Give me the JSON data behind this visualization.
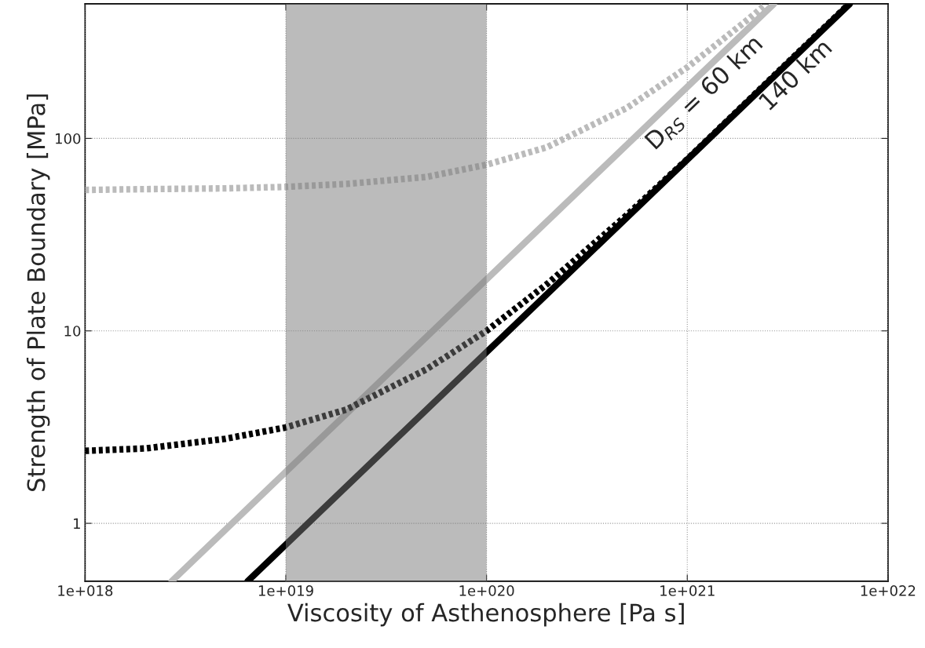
{
  "chart_data": {
    "type": "line",
    "xlabel": "Viscosity of Asthenosphere [Pa s]",
    "ylabel": "Strength of Plate Boundary [MPa]",
    "log": "xy",
    "grid": true,
    "xlim": [
      1e+18,
      1e+22
    ],
    "ylim": [
      0.5,
      500
    ],
    "xticks": [
      {
        "value": 1e+18,
        "label": "1e+018"
      },
      {
        "value": 1e+19,
        "label": "1e+019"
      },
      {
        "value": 1e+20,
        "label": "1e+020"
      },
      {
        "value": 1e+21,
        "label": "1e+021"
      },
      {
        "value": 1e+22,
        "label": "1e+022"
      }
    ],
    "yticks": [
      1,
      10,
      100
    ],
    "series": [
      {
        "color": "#bbbbbb",
        "line_style": "dotted",
        "x": [
          1e+18,
          2e+18,
          5e+18,
          1e+19,
          2e+19,
          5e+19,
          1e+20,
          2e+20,
          5e+20,
          1e+21,
          2e+21,
          2.45e+21
        ],
        "values": [
          54,
          54.5,
          55,
          56,
          58,
          63,
          73,
          90,
          144,
          234,
          414,
          495
        ]
      },
      {
        "color": "#bbbbbb",
        "line_style": "solid",
        "x": [
          2.7e+18,
          2.7e+21
        ],
        "values": [
          0.5,
          500
        ]
      },
      {
        "color": "#000000",
        "line_style": "dotted",
        "x": [
          1e+18,
          2e+18,
          5e+18,
          1e+19,
          2e+19,
          5e+19,
          1e+20,
          2e+20,
          5e+20,
          1e+21,
          3e+21,
          6.4e+21
        ],
        "values": [
          2.38,
          2.45,
          2.75,
          3.15,
          3.9,
          6.3,
          10,
          17.5,
          40,
          78,
          235,
          500
        ]
      },
      {
        "color": "#000000",
        "line_style": "solid",
        "x": [
          6.45e+18,
          6.45e+21
        ],
        "values": [
          0.5,
          500
        ]
      }
    ],
    "bands": [
      {
        "axis": "x",
        "from": 1e+19,
        "to": 1e+20,
        "color": "#bbbbbb"
      }
    ],
    "annotations": [
      "D$_{RS}$ = 60 km",
      "140 km"
    ]
  }
}
